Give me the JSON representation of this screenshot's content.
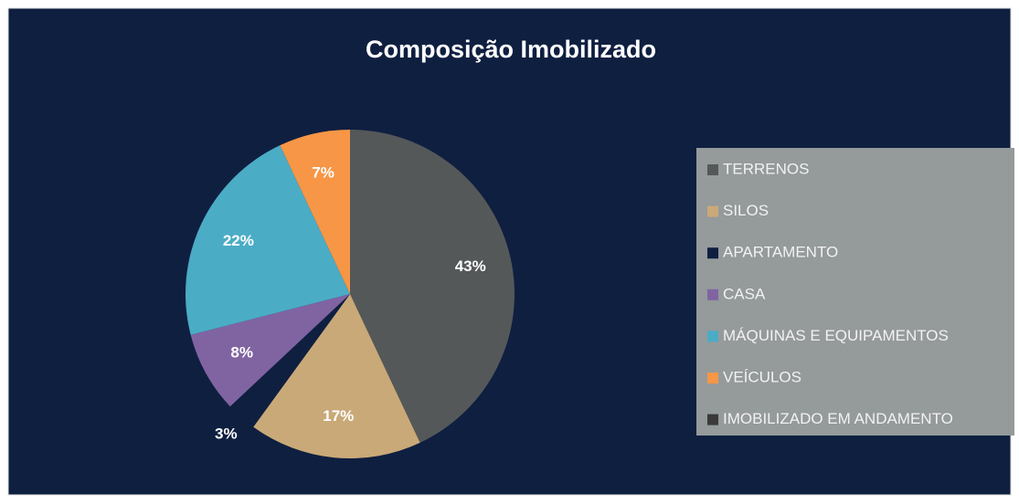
{
  "chart_data": {
    "type": "pie",
    "title": "Composição Imobilizado",
    "categories": [
      "TERRENOS",
      "SILOS",
      "APARTAMENTO",
      "CASA",
      "MÁQUINAS E EQUIPAMENTOS",
      "VEÍCULOS",
      "IMOBILIZADO EM ANDAMENTO"
    ],
    "values": [
      43,
      17,
      3,
      8,
      22,
      7,
      0
    ],
    "value_labels": [
      "43%",
      "17%",
      "3%",
      "8%",
      "22%",
      "7%",
      null
    ],
    "colors": [
      "#545859",
      "#c9a978",
      "#0f1f40",
      "#8064a2",
      "#4bacc6",
      "#f79646",
      "#3a3a3a"
    ],
    "legend": "right"
  }
}
